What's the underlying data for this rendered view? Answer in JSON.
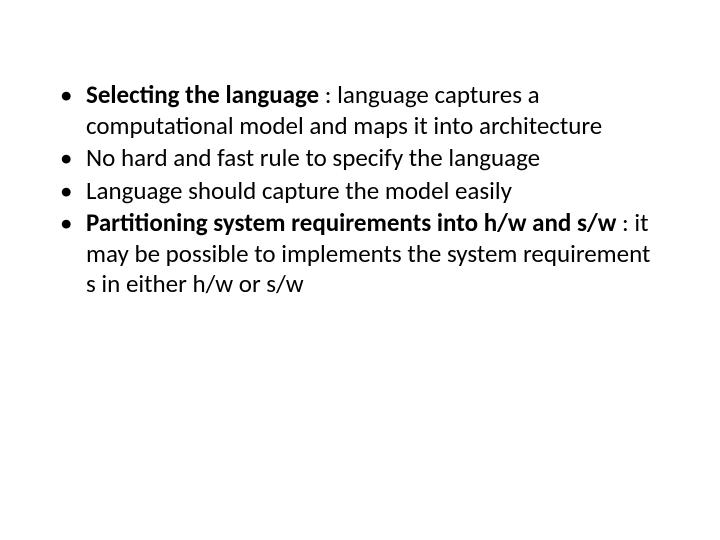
{
  "slide": {
    "text_color": "#000000",
    "background_color": "#ffffff",
    "font_size_pt": 25,
    "bullets": [
      {
        "bold_lead": "Selecting the language",
        "rest": " : language captures a computational model and maps it into architecture"
      },
      {
        "bold_lead": "",
        "rest": "No hard and fast rule to specify the language"
      },
      {
        "bold_lead": "",
        "rest": "Language should capture the model easily"
      },
      {
        "bold_lead": "Partitioning system requirements into h/w and s/w",
        "rest": " : it may be possible to implements the system requirement s in either h/w or s/w"
      }
    ]
  }
}
